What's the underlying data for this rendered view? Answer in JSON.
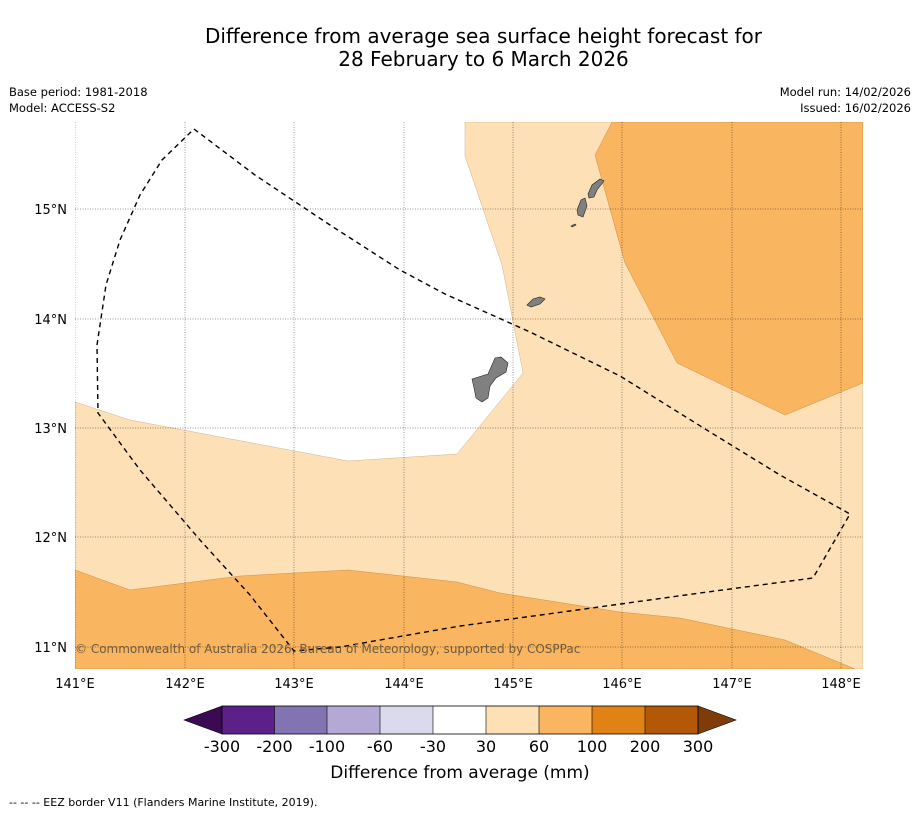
{
  "title": {
    "line1": "Difference from average sea surface height forecast for",
    "line2": "28 February to 6 March 2026"
  },
  "meta": {
    "base_period": "Base period: 1981-2018",
    "model": "Model: ACCESS-S2",
    "model_run": "Model run: 14/02/2026",
    "issued": "Issued: 16/02/2026"
  },
  "map": {
    "lon_ticks": [
      "141°E",
      "142°E",
      "143°E",
      "144°E",
      "145°E",
      "146°E",
      "147°E",
      "148°E"
    ],
    "lat_ticks": [
      "15°N",
      "14°N",
      "13°N",
      "12°N",
      "11°N"
    ],
    "copyright": "© Commonwealth of Australia 2026, Bureau of Meteorology, supported by COSPPac",
    "colors": {
      "band_30_60": "#fde0b5",
      "band_60_100": "#f9b560",
      "land": "#808080",
      "eez": "#000000"
    }
  },
  "colorbar": {
    "ticks": [
      "-300",
      "-200",
      "-100",
      "-60",
      "-30",
      "30",
      "60",
      "100",
      "200",
      "300"
    ],
    "colors": [
      "#3b0a52",
      "#5b2188",
      "#8274b2",
      "#b3a9d4",
      "#dadaec",
      "#ffffff",
      "#fde0b5",
      "#f9b560",
      "#e08214",
      "#b35806",
      "#7f3b08"
    ],
    "label": "Difference from average (mm)"
  },
  "footer": "--  --  -- EEZ border V11 (Flanders Marine Institute, 2019)."
}
